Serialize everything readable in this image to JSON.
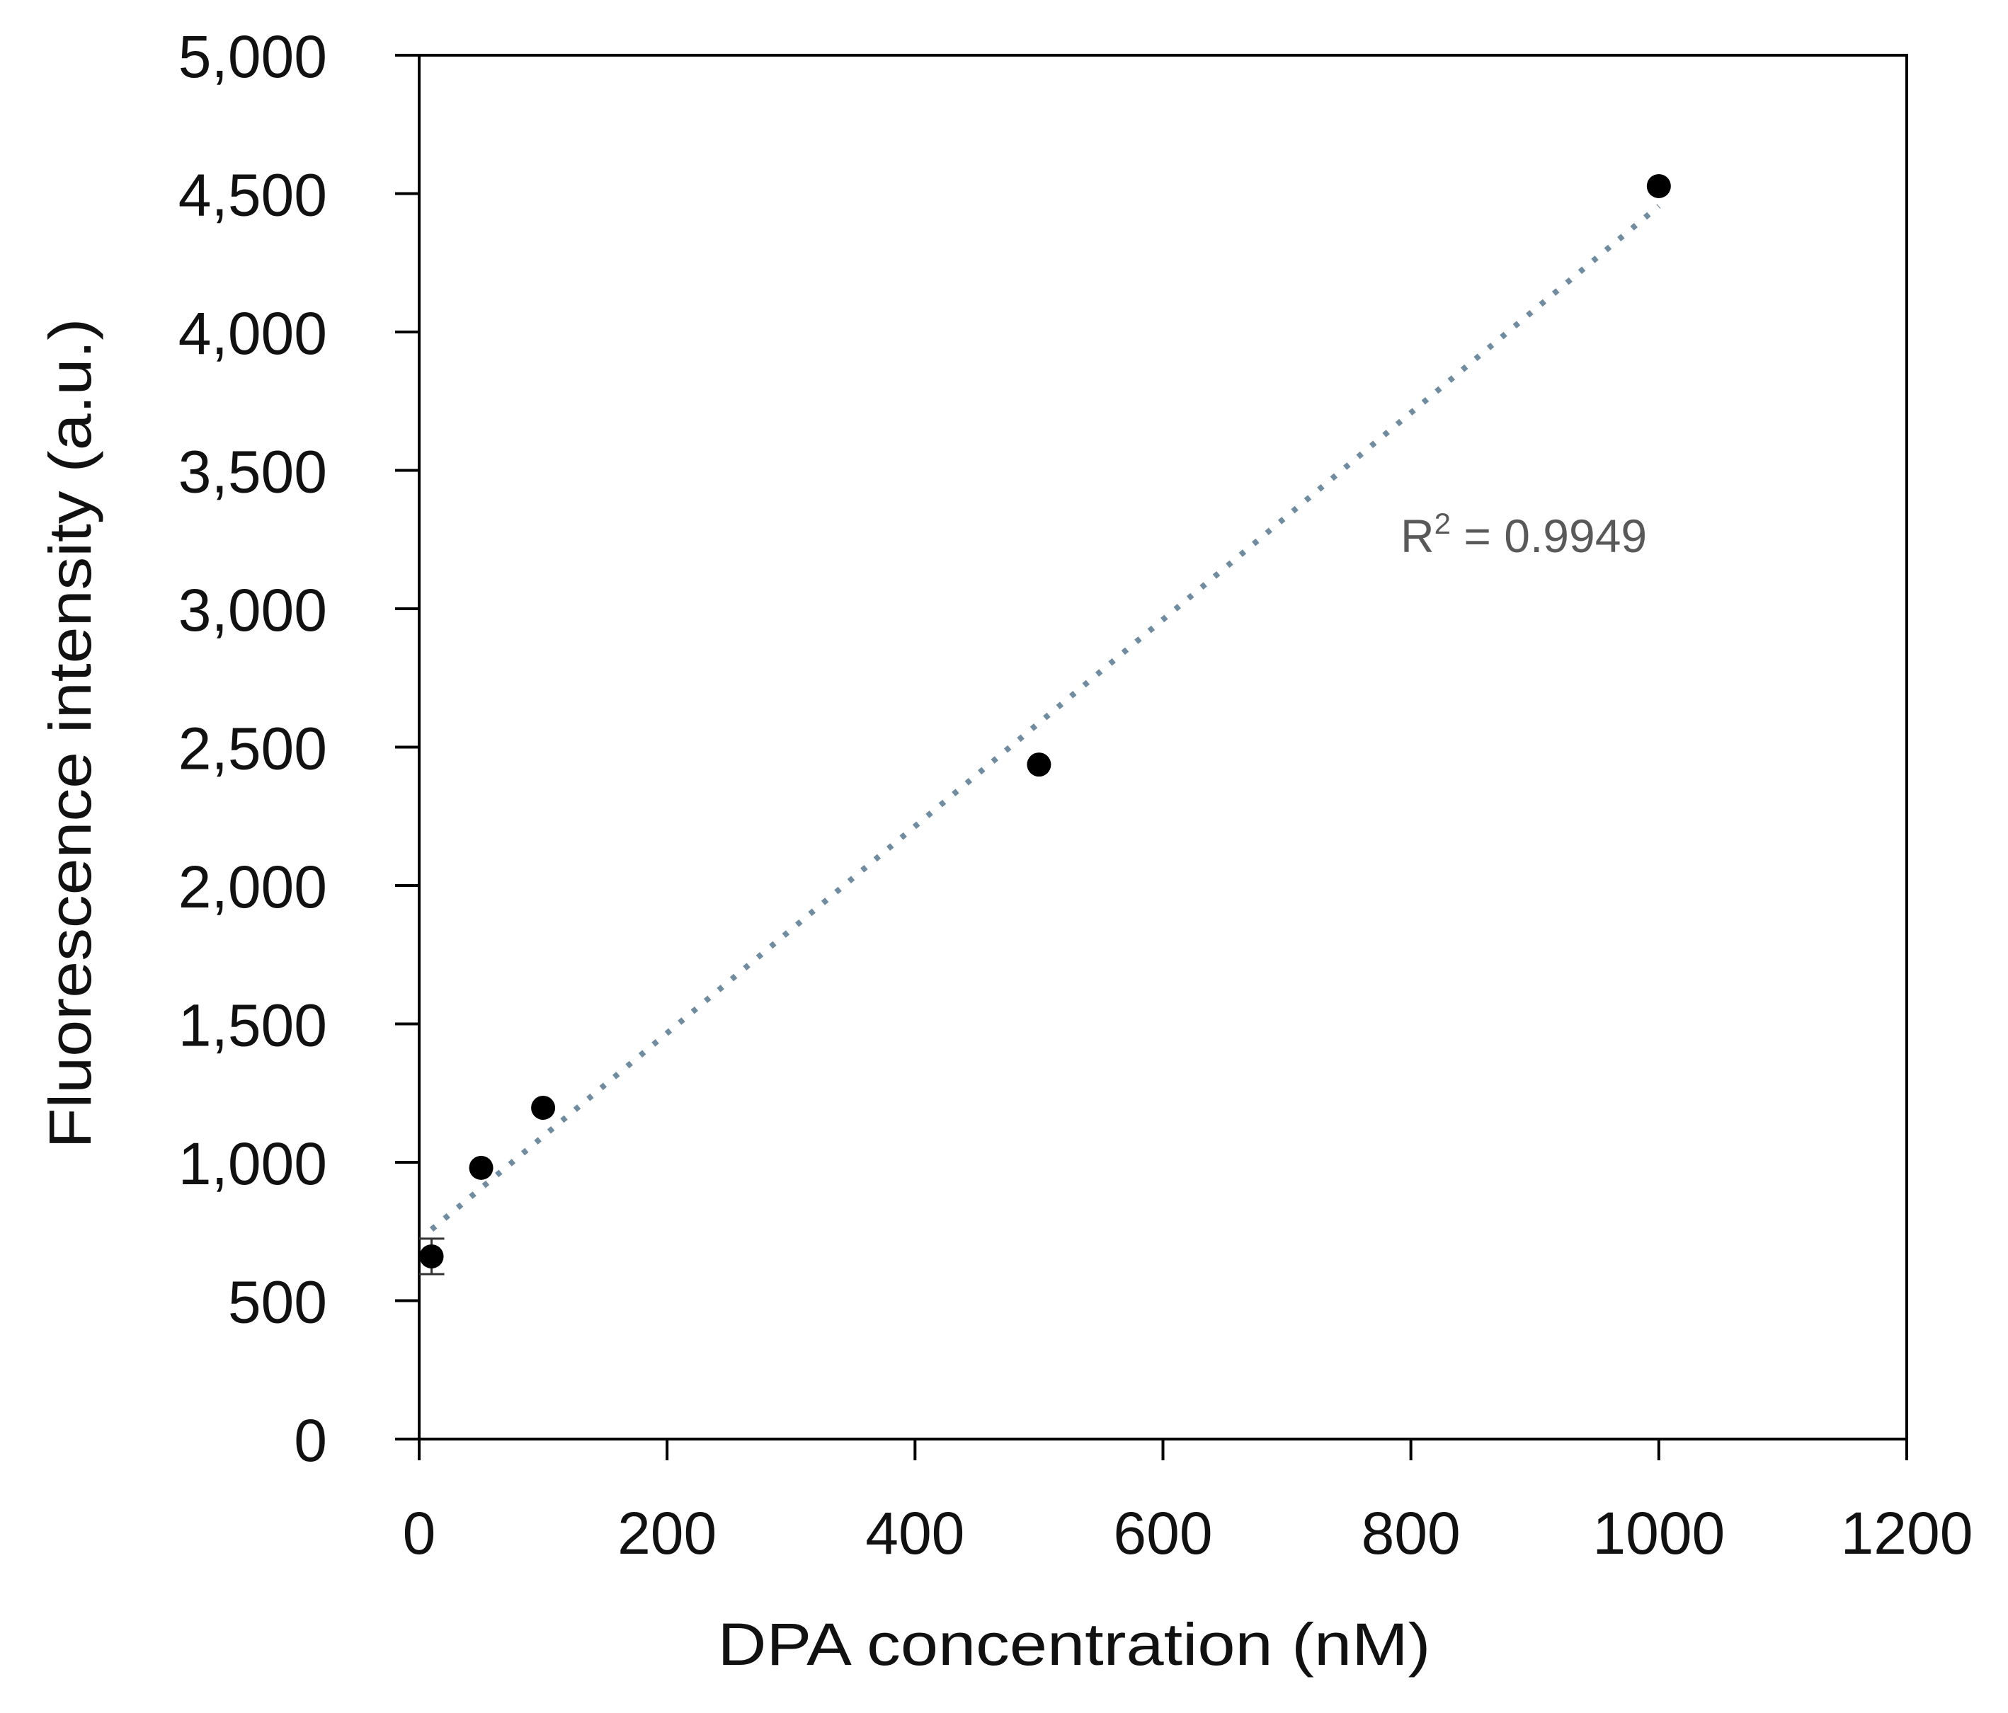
{
  "chart_data": {
    "type": "scatter",
    "title": "",
    "xlabel": "DPA concentration (nM)",
    "ylabel": "Fluorescence intensity (a.u.)",
    "xlim": [
      0,
      1200
    ],
    "ylim": [
      0,
      5000
    ],
    "x_ticks": [
      0,
      200,
      400,
      600,
      800,
      1000,
      1200
    ],
    "x_tick_labels": [
      "0",
      "200",
      "400",
      "600",
      "800",
      "1000",
      "1200"
    ],
    "y_ticks": [
      0,
      500,
      1000,
      1500,
      2000,
      2500,
      3000,
      3500,
      4000,
      4500,
      5000
    ],
    "y_tick_labels": [
      "0",
      "500",
      "1,000",
      "1,500",
      "2,000",
      "2,500",
      "3,000",
      "3,500",
      "4,000",
      "4,500",
      "5,000"
    ],
    "grid": false,
    "legend": null,
    "series": [
      {
        "name": "DPA",
        "x": [
          10,
          50,
          100,
          500,
          1000
        ],
        "y": [
          660,
          980,
          1197,
          2437,
          4527
        ],
        "y_error": [
          64,
          0,
          0,
          0,
          0
        ],
        "marker": "circle",
        "color": "#000000"
      }
    ],
    "trendline": {
      "type": "linear",
      "style": "dotted",
      "color": "#6F8CA0",
      "x_range": [
        10,
        1000
      ],
      "slope": 3.735,
      "intercept": 720,
      "r_squared": 0.9949
    },
    "annotations": [
      {
        "text_main": "R",
        "text_sup": "2",
        "text_rest": " = 0.9949",
        "x": 880,
        "y": 3260
      }
    ]
  },
  "colors": {
    "axis": "#000000",
    "marker": "#000000",
    "trendline": "#6F8CA0",
    "annotation": "#595959",
    "background": "#FFFFFF"
  }
}
